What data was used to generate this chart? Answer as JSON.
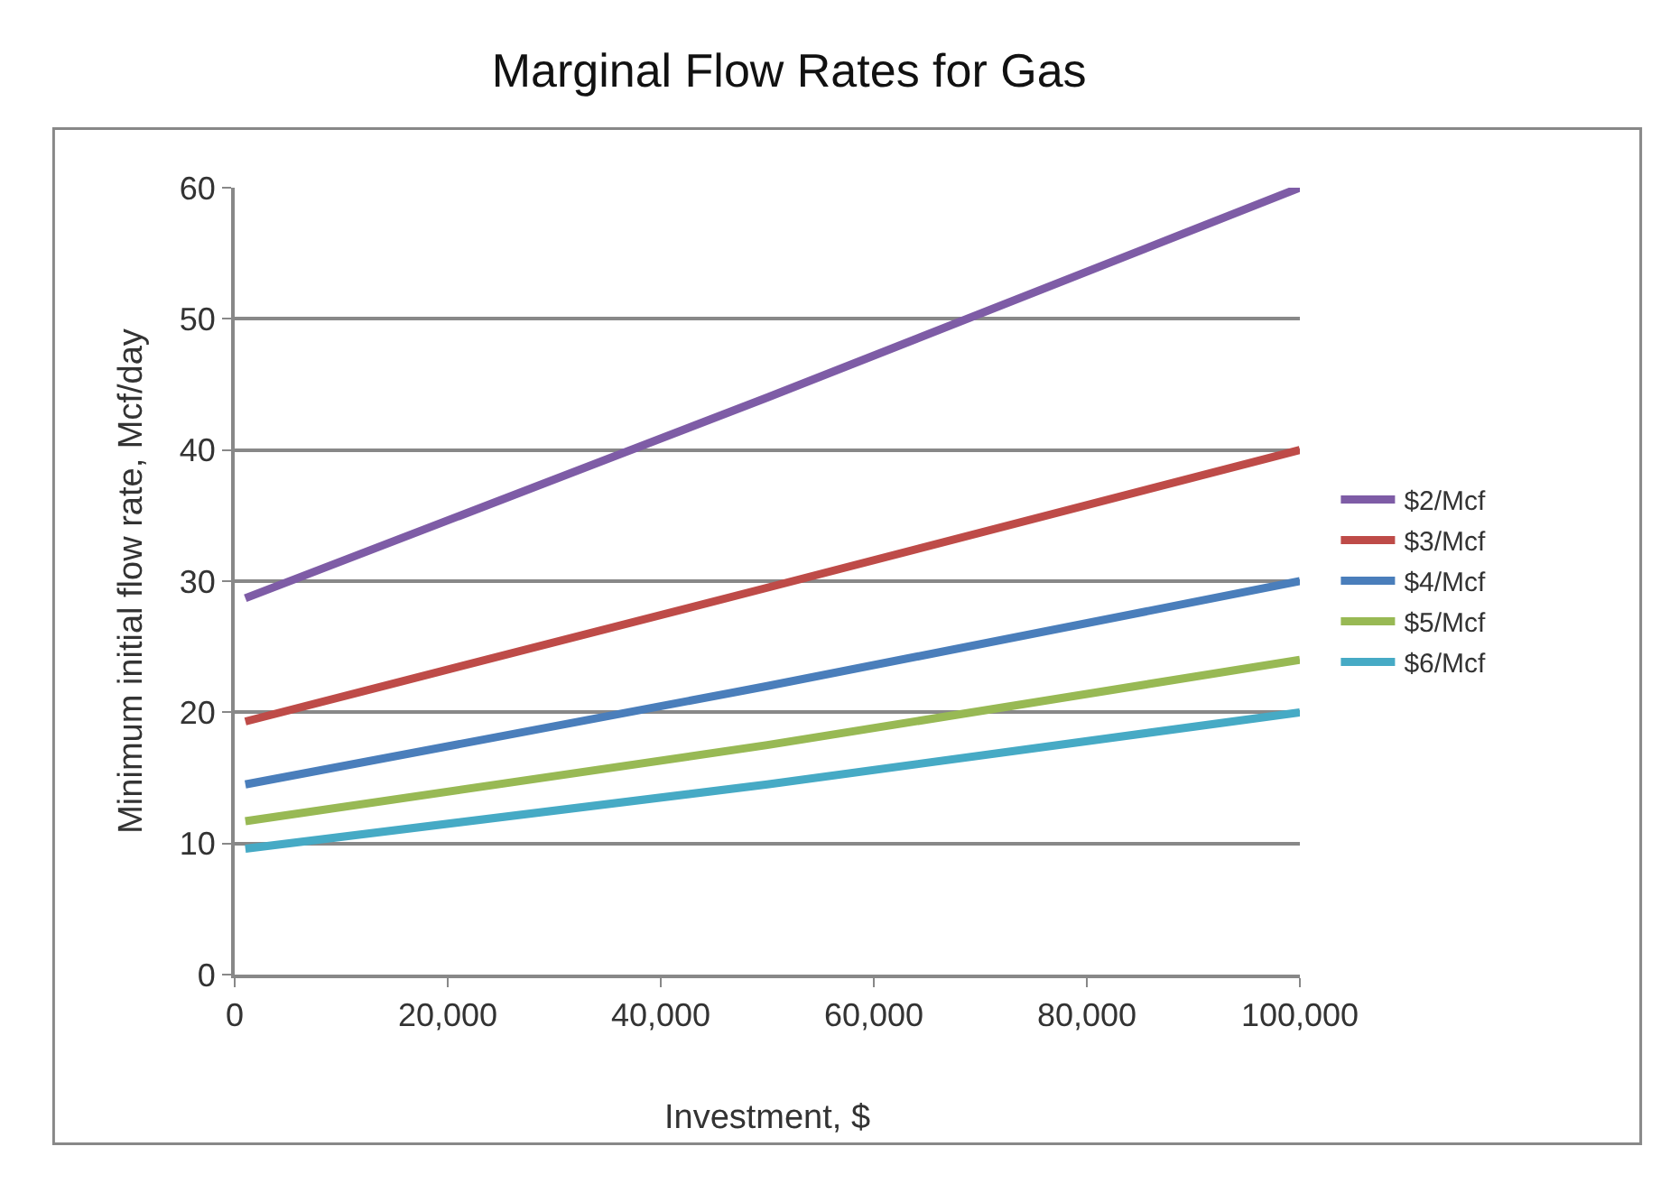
{
  "chart_data": {
    "type": "line",
    "title": "Marginal Flow Rates for Gas",
    "xlabel": "Investment, $",
    "ylabel": "Minimum initial flow rate, Mcf/day",
    "x": [
      1000,
      50000,
      100000
    ],
    "series": [
      {
        "name": "$2/Mcf",
        "color": "#7e5ca6",
        "values": [
          28.7,
          44,
          60
        ]
      },
      {
        "name": "$3/Mcf",
        "color": "#be4b48",
        "values": [
          19.3,
          29.5,
          40
        ]
      },
      {
        "name": "$4/Mcf",
        "color": "#4a7ebb",
        "values": [
          14.5,
          22,
          30
        ]
      },
      {
        "name": "$5/Mcf",
        "color": "#98b954",
        "values": [
          11.7,
          17.5,
          24
        ]
      },
      {
        "name": "$6/Mcf",
        "color": "#46aac5",
        "values": [
          9.6,
          14.5,
          20
        ]
      }
    ],
    "xlim": [
      0,
      100000
    ],
    "xticks": [
      {
        "value": 0,
        "label": "0"
      },
      {
        "value": 20000,
        "label": "20,000"
      },
      {
        "value": 40000,
        "label": "40,000"
      },
      {
        "value": 60000,
        "label": "60,000"
      },
      {
        "value": 80000,
        "label": "80,000"
      },
      {
        "value": 100000,
        "label": "100,000"
      }
    ],
    "ylim": [
      0,
      60
    ],
    "yticks": [
      0,
      10,
      20,
      30,
      40,
      50,
      60
    ],
    "grid": "y",
    "legend": "right",
    "marker": "none",
    "line_style": "solid"
  }
}
